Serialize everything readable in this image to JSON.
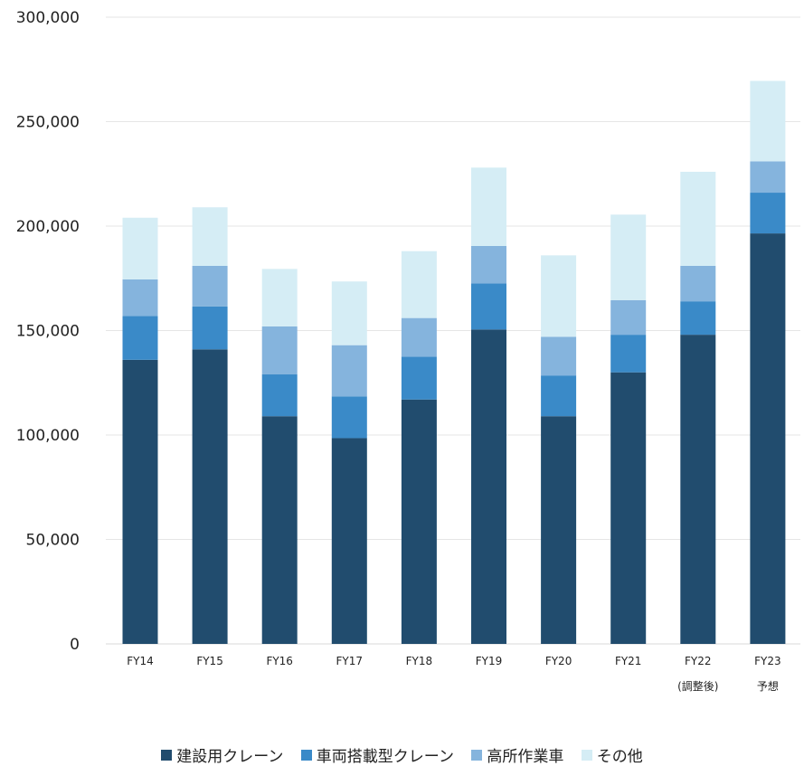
{
  "chart_data": {
    "type": "bar",
    "stacked": true,
    "title": "",
    "xlabel": "",
    "ylabel": "",
    "ylim": [
      0,
      300000
    ],
    "yticks": [
      "0",
      "50,000",
      "100,000",
      "150,000",
      "200,000",
      "250,000",
      "300,000"
    ],
    "ytick_values": [
      0,
      50000,
      100000,
      150000,
      200000,
      250000,
      300000
    ],
    "grid": true,
    "legend_position": "bottom",
    "categories": [
      [
        "FY14"
      ],
      [
        "FY15"
      ],
      [
        "FY16"
      ],
      [
        "FY17"
      ],
      [
        "FY18"
      ],
      [
        "FY19"
      ],
      [
        "FY20"
      ],
      [
        "FY21"
      ],
      [
        "FY22",
        "(調整後)"
      ],
      [
        "FY23",
        "予想"
      ]
    ],
    "series": [
      {
        "name": "建設用クレーン",
        "color": "#214c6e",
        "values": [
          136000,
          141000,
          109000,
          98500,
          117000,
          150500,
          109000,
          130000,
          148000,
          196500
        ]
      },
      {
        "name": "車両搭載型クレーン",
        "color": "#3a8ac8",
        "values": [
          21000,
          20500,
          20000,
          20000,
          20500,
          22000,
          19500,
          18000,
          16000,
          19500
        ]
      },
      {
        "name": "高所作業車",
        "color": "#85b4dd",
        "values": [
          17500,
          19500,
          23000,
          24500,
          18500,
          18000,
          18500,
          16500,
          17000,
          15000
        ]
      },
      {
        "name": "その他",
        "color": "#d5edf5",
        "values": [
          29500,
          28000,
          27500,
          30500,
          32000,
          37500,
          39000,
          41000,
          45000,
          38500
        ]
      }
    ]
  }
}
